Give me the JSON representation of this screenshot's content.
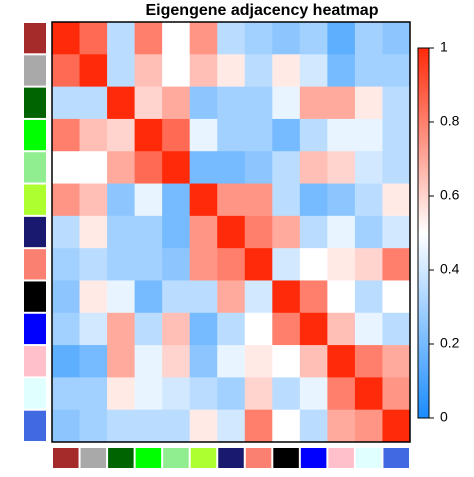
{
  "chart_data": {
    "type": "heatmap",
    "title": "Eigengene adjacency heatmap",
    "module_colors": [
      "#a52a2a",
      "#a9a9a9",
      "#006400",
      "#00ff00",
      "#90ee90",
      "#adff2f",
      "#191970",
      "#fa8072",
      "#000000",
      "#0000ff",
      "#ffc0cb",
      "#e0ffff",
      "#4169e1"
    ],
    "colorscale": [
      "#1a8cff",
      "#ffffff",
      "#ff2a0a"
    ],
    "zlim": [
      0,
      1
    ],
    "zticks": [
      0,
      0.2,
      0.4,
      0.6,
      0.8,
      1
    ],
    "values": [
      [
        1,
        0.85,
        0.35,
        0.8,
        0.5,
        0.75,
        0.35,
        0.3,
        0.25,
        0.3,
        0.15,
        0.3,
        0.25
      ],
      [
        0.85,
        1,
        0.35,
        0.65,
        0.5,
        0.65,
        0.55,
        0.35,
        0.55,
        0.4,
        0.2,
        0.3,
        0.3
      ],
      [
        0.35,
        0.35,
        1,
        0.6,
        0.7,
        0.25,
        0.3,
        0.3,
        0.45,
        0.7,
        0.7,
        0.55,
        0.35
      ],
      [
        0.8,
        0.65,
        0.6,
        1,
        0.85,
        0.45,
        0.3,
        0.3,
        0.2,
        0.35,
        0.45,
        0.45,
        0.35
      ],
      [
        0.5,
        0.5,
        0.7,
        0.85,
        1,
        0.2,
        0.2,
        0.25,
        0.35,
        0.65,
        0.6,
        0.4,
        0.35
      ],
      [
        0.75,
        0.65,
        0.25,
        0.45,
        0.2,
        1,
        0.75,
        0.75,
        0.35,
        0.2,
        0.25,
        0.35,
        0.55
      ],
      [
        0.35,
        0.55,
        0.3,
        0.3,
        0.2,
        0.75,
        1,
        0.8,
        0.7,
        0.35,
        0.45,
        0.3,
        0.4
      ],
      [
        0.3,
        0.35,
        0.3,
        0.3,
        0.25,
        0.75,
        0.8,
        1,
        0.4,
        0.5,
        0.55,
        0.6,
        0.8
      ],
      [
        0.25,
        0.55,
        0.45,
        0.2,
        0.35,
        0.35,
        0.7,
        0.4,
        1,
        0.8,
        0.5,
        0.35,
        0.5
      ],
      [
        0.3,
        0.4,
        0.7,
        0.35,
        0.65,
        0.2,
        0.35,
        0.5,
        0.8,
        1,
        0.65,
        0.45,
        0.35
      ],
      [
        0.15,
        0.2,
        0.7,
        0.45,
        0.6,
        0.25,
        0.45,
        0.55,
        0.5,
        0.65,
        1,
        0.8,
        0.7
      ],
      [
        0.3,
        0.3,
        0.55,
        0.45,
        0.4,
        0.35,
        0.3,
        0.6,
        0.35,
        0.45,
        0.8,
        1,
        0.75
      ],
      [
        0.25,
        0.3,
        0.35,
        0.35,
        0.35,
        0.55,
        0.4,
        0.8,
        0.5,
        0.35,
        0.7,
        0.75,
        1
      ]
    ]
  }
}
